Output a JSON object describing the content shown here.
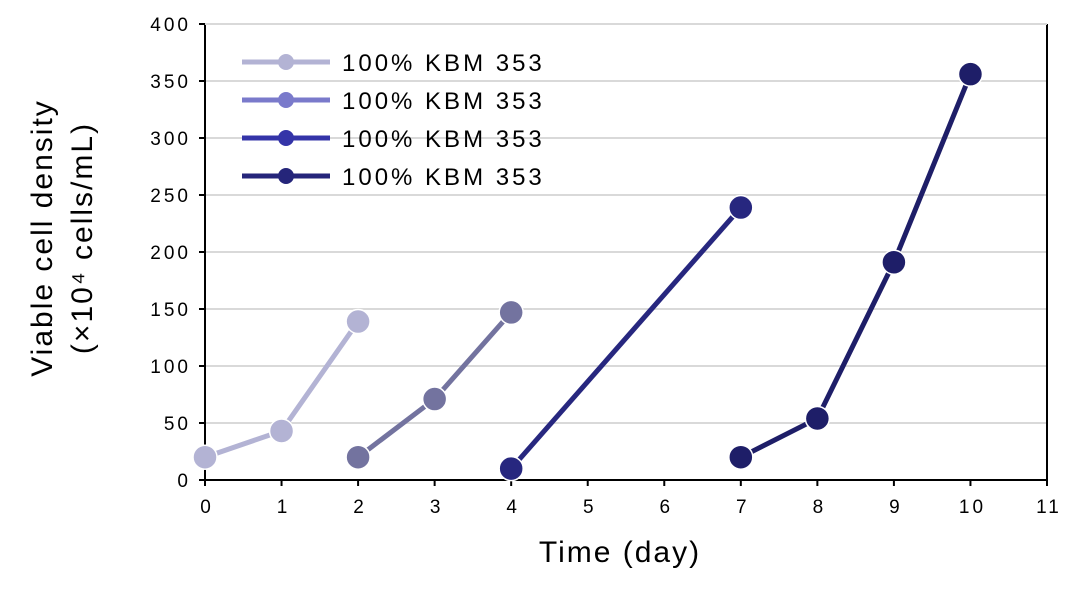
{
  "chart_data": {
    "type": "line",
    "xlabel": "Time (day)",
    "ylabel_line1": "Viable cell density",
    "ylabel_line2": "(×10⁴ cells/mL)",
    "xlim": [
      0,
      11
    ],
    "ylim": [
      0,
      400
    ],
    "xticks": [
      0,
      1,
      2,
      3,
      4,
      5,
      6,
      7,
      8,
      9,
      10,
      11
    ],
    "yticks": [
      0,
      50,
      100,
      150,
      200,
      250,
      300,
      350,
      400
    ],
    "grid": "horizontal",
    "legend_position": "top-left",
    "series": [
      {
        "name": "100% KBM 353",
        "color": "#b3b3d4",
        "points": [
          [
            0,
            20
          ],
          [
            1,
            43
          ],
          [
            2,
            139
          ]
        ]
      },
      {
        "name": "100% KBM 353",
        "color": "#73739f",
        "points": [
          [
            2,
            20
          ],
          [
            3,
            71
          ],
          [
            4,
            147
          ]
        ]
      },
      {
        "name": "100% KBM 353",
        "color": "#27277f",
        "points": [
          [
            4,
            10
          ],
          [
            7,
            239
          ]
        ]
      },
      {
        "name": "100% KBM 353",
        "color": "#1e1e68",
        "points": [
          [
            7,
            20
          ],
          [
            8,
            54
          ],
          [
            9,
            191
          ],
          [
            10,
            356
          ]
        ]
      }
    ],
    "legend": [
      {
        "label": "100% KBM 353",
        "color": "#b3b3d4"
      },
      {
        "label": "100% KBM 353",
        "color": "#7a7acb"
      },
      {
        "label": "100% KBM 353",
        "color": "#3434a8"
      },
      {
        "label": "100% KBM 353",
        "color": "#25257a"
      }
    ]
  }
}
